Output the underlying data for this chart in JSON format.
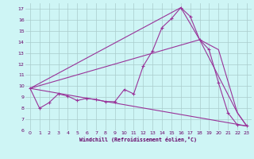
{
  "xlabel": "Windchill (Refroidissement éolien,°C)",
  "background_color": "#cef5f5",
  "grid_color": "#aacccc",
  "line_color": "#993399",
  "xlim": [
    -0.5,
    23.5
  ],
  "ylim": [
    6,
    17.5
  ],
  "xticks": [
    0,
    1,
    2,
    3,
    4,
    5,
    6,
    7,
    8,
    9,
    10,
    11,
    12,
    13,
    14,
    15,
    16,
    17,
    18,
    19,
    20,
    21,
    22,
    23
  ],
  "yticks": [
    6,
    7,
    8,
    9,
    10,
    11,
    12,
    13,
    14,
    15,
    16,
    17
  ],
  "series1_x": [
    0,
    1,
    2,
    3,
    4,
    5,
    6,
    7,
    8,
    9,
    10,
    11,
    12,
    13,
    14,
    15,
    16,
    17,
    18,
    19,
    20,
    21,
    22,
    23
  ],
  "series1_y": [
    9.8,
    8.0,
    8.5,
    9.3,
    9.1,
    8.7,
    8.9,
    8.8,
    8.6,
    8.6,
    9.7,
    9.3,
    11.8,
    13.2,
    15.3,
    16.1,
    17.1,
    16.3,
    14.2,
    13.3,
    10.3,
    7.6,
    6.5,
    6.4
  ],
  "series2_x": [
    0,
    23
  ],
  "series2_y": [
    9.8,
    6.4
  ],
  "series3_x": [
    0,
    18,
    20,
    22,
    23
  ],
  "series3_y": [
    9.8,
    14.2,
    13.3,
    7.6,
    6.4
  ],
  "series4_x": [
    0,
    16,
    18,
    22,
    23
  ],
  "series4_y": [
    9.8,
    17.1,
    14.2,
    7.6,
    6.4
  ]
}
